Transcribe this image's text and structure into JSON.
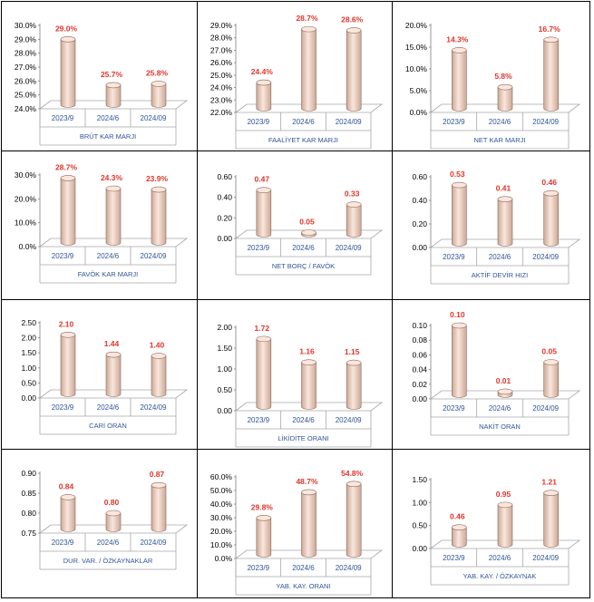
{
  "colors": {
    "label_red": "#e0342a",
    "axis_text": "#000000",
    "category_text": "#2f5597",
    "cylinder_light": "#fbe6dc",
    "cylinder_dark": "#caa896",
    "cylinder_edge": "#8a6a5c",
    "floor_line": "#a6a6a6"
  },
  "chart_data": [
    {
      "type": "bar",
      "title": "BRÜT KAR MARJI",
      "categories": [
        "2023/9",
        "2024/6",
        "2024/09"
      ],
      "values": [
        29.0,
        25.7,
        25.8
      ],
      "labels": [
        "29.0%",
        "25.7%",
        "25.8%"
      ],
      "ylim": [
        24,
        30
      ],
      "ticks": [
        "24.0%",
        "25.0%",
        "26.0%",
        "27.0%",
        "28.0%",
        "29.0%",
        "30.0%"
      ]
    },
    {
      "type": "bar",
      "title": "FAALİYET KAR MARJI",
      "categories": [
        "2023/9",
        "2024/6",
        "2024/09"
      ],
      "values": [
        24.4,
        28.7,
        28.6
      ],
      "labels": [
        "24.4%",
        "28.7%",
        "28.6%"
      ],
      "ylim": [
        22,
        29
      ],
      "ticks": [
        "22.0%",
        "23.0%",
        "24.0%",
        "25.0%",
        "26.0%",
        "27.0%",
        "28.0%",
        "29.0%"
      ]
    },
    {
      "type": "bar",
      "title": "NET KAR MARJI",
      "categories": [
        "2023/9",
        "2024/6",
        "2024/09"
      ],
      "values": [
        14.3,
        5.8,
        16.7
      ],
      "labels": [
        "14.3%",
        "5.8%",
        "16.7%"
      ],
      "ylim": [
        0,
        20
      ],
      "ticks": [
        "0.0%",
        "5.0%",
        "10.0%",
        "15.0%",
        "20.0%"
      ]
    },
    {
      "type": "bar",
      "title": "FAVÖK KAR MARJI",
      "categories": [
        "2023/9",
        "2024/6",
        "2024/09"
      ],
      "values": [
        28.7,
        24.3,
        23.9
      ],
      "labels": [
        "28.7%",
        "24.3%",
        "23.9%"
      ],
      "ylim": [
        0,
        30
      ],
      "ticks": [
        "0.0%",
        "10.0%",
        "20.0%",
        "30.0%"
      ]
    },
    {
      "type": "bar",
      "title": "NET BORÇ / FAVÖK",
      "categories": [
        "2023/9",
        "2024/6",
        "2024/09"
      ],
      "values": [
        0.47,
        0.05,
        0.33
      ],
      "labels": [
        "0.47",
        "0.05",
        "0.33"
      ],
      "ylim": [
        0,
        0.6
      ],
      "ticks": [
        "0.00",
        "0.20",
        "0.40",
        "0.60"
      ]
    },
    {
      "type": "bar",
      "title": "AKTİF DEVİR HIZI",
      "categories": [
        "2023/9",
        "2024/6",
        "2024/09"
      ],
      "values": [
        0.53,
        0.41,
        0.46
      ],
      "labels": [
        "0.53",
        "0.41",
        "0.46"
      ],
      "ylim": [
        0,
        0.6
      ],
      "ticks": [
        "0.00",
        "0.20",
        "0.40",
        "0.60"
      ]
    },
    {
      "type": "bar",
      "title": "CARİ ORAN",
      "categories": [
        "2023/9",
        "2024/6",
        "2024/09"
      ],
      "values": [
        2.1,
        1.44,
        1.4
      ],
      "labels": [
        "2.10",
        "1.44",
        "1.40"
      ],
      "ylim": [
        0,
        2.5
      ],
      "ticks": [
        "0.00",
        "0.50",
        "1.00",
        "1.50",
        "2.00",
        "2.50"
      ]
    },
    {
      "type": "bar",
      "title": "LİKİDİTE ORANI",
      "categories": [
        "2023/9",
        "2024/6",
        "2024/09"
      ],
      "values": [
        1.72,
        1.16,
        1.15
      ],
      "labels": [
        "1.72",
        "1.16",
        "1.15"
      ],
      "ylim": [
        0,
        2.0
      ],
      "ticks": [
        "0.00",
        "0.50",
        "1.00",
        "1.50",
        "2.00"
      ]
    },
    {
      "type": "bar",
      "title": "NAKİT ORAN",
      "categories": [
        "2023/9",
        "2024/6",
        "2024/09"
      ],
      "values": [
        0.1,
        0.01,
        0.05
      ],
      "labels": [
        "0.10",
        "0.01",
        "0.05"
      ],
      "ylim": [
        0,
        0.1
      ],
      "ticks": [
        "0.00",
        "0.02",
        "0.04",
        "0.06",
        "0.08",
        "0.10"
      ]
    },
    {
      "type": "bar",
      "title": "DUR. VAR. / ÖZKAYNAKLAR",
      "categories": [
        "2023/9",
        "2024/6",
        "2024/09"
      ],
      "values": [
        0.84,
        0.8,
        0.87
      ],
      "labels": [
        "0.84",
        "0.80",
        "0.87"
      ],
      "ylim": [
        0.75,
        0.9
      ],
      "ticks": [
        "0.75",
        "0.80",
        "0.85",
        "0.90"
      ]
    },
    {
      "type": "bar",
      "title": "YAB. KAY. ORANI",
      "categories": [
        "2023/9",
        "2024/6",
        "2024/09"
      ],
      "values": [
        29.8,
        48.7,
        54.8
      ],
      "labels": [
        "29.8%",
        "48.7%",
        "54.8%"
      ],
      "ylim": [
        0,
        60
      ],
      "ticks": [
        "0.0%",
        "10.0%",
        "20.0%",
        "30.0%",
        "40.0%",
        "50.0%",
        "60.0%"
      ]
    },
    {
      "type": "bar",
      "title": "YAB. KAY. / ÖZKAYNAK",
      "categories": [
        "2023/9",
        "2024/6",
        "2024/09"
      ],
      "values": [
        0.46,
        0.95,
        1.21
      ],
      "labels": [
        "0.46",
        "0.95",
        "1.21"
      ],
      "ylim": [
        0,
        1.5
      ],
      "ticks": [
        "0.00",
        "0.50",
        "1.00",
        "1.50"
      ]
    }
  ]
}
